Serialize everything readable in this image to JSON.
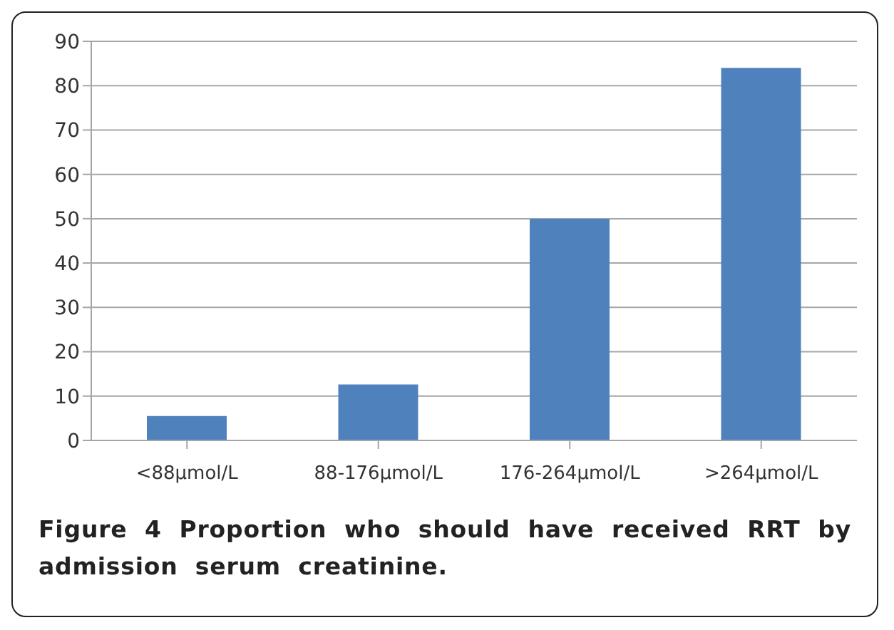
{
  "chart_data": {
    "type": "bar",
    "categories": [
      "<88µmol/L",
      "88-176µmol/L",
      "176-264µmol/L",
      ">264µmol/L"
    ],
    "values": [
      5.5,
      12.6,
      50,
      84
    ],
    "color": "#4f81bd",
    "ylim": [
      0,
      90
    ],
    "yticks": [
      0,
      10,
      20,
      30,
      40,
      50,
      60,
      70,
      80,
      90
    ],
    "grid": "y",
    "annotations": [
      "Figure 4 Proportion who should have received RRT by admission serum creatinine."
    ]
  }
}
